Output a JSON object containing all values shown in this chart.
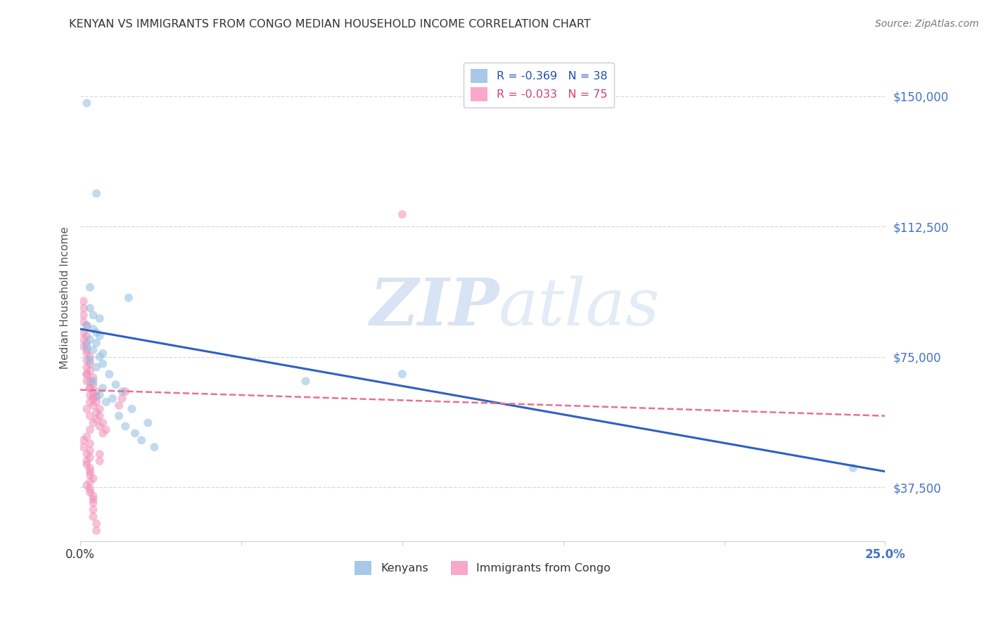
{
  "title": "KENYAN VS IMMIGRANTS FROM CONGO MEDIAN HOUSEHOLD INCOME CORRELATION CHART",
  "source": "Source: ZipAtlas.com",
  "ylabel": "Median Household Income",
  "xlim": [
    0.0,
    0.25
  ],
  "ylim": [
    22000,
    162000
  ],
  "yticks": [
    37500,
    75000,
    112500,
    150000
  ],
  "ytick_labels": [
    "$37,500",
    "$75,000",
    "$112,500",
    "$150,000"
  ],
  "xticks": [
    0.0,
    0.05,
    0.1,
    0.15,
    0.2,
    0.25
  ],
  "xtick_labels_show": [
    "0.0%",
    "",
    "",
    "",
    "",
    "25.0%"
  ],
  "legend_top": [
    {
      "label": "R = -0.369   N = 38",
      "color": "#a8c8e8"
    },
    {
      "label": "R = -0.033   N = 75",
      "color": "#f9a8c9"
    }
  ],
  "legend_bottom": [
    {
      "label": "Kenyans",
      "color": "#a8c8e8"
    },
    {
      "label": "Immigrants from Congo",
      "color": "#f9a8c9"
    }
  ],
  "watermark_zip": "ZIP",
  "watermark_atlas": "atlas",
  "blue_line_x": [
    0.0,
    0.25
  ],
  "blue_line_y": [
    83000,
    42000
  ],
  "pink_line_x": [
    0.0,
    0.25
  ],
  "pink_line_y": [
    65500,
    58000
  ],
  "kenyan_x": [
    0.002,
    0.005,
    0.003,
    0.015,
    0.003,
    0.004,
    0.006,
    0.002,
    0.004,
    0.005,
    0.006,
    0.003,
    0.005,
    0.002,
    0.004,
    0.007,
    0.006,
    0.003,
    0.007,
    0.005,
    0.009,
    0.004,
    0.011,
    0.007,
    0.013,
    0.006,
    0.01,
    0.008,
    0.016,
    0.012,
    0.021,
    0.014,
    0.017,
    0.019,
    0.023,
    0.07,
    0.1,
    0.24
  ],
  "kenyan_y": [
    148000,
    122000,
    95000,
    92000,
    89000,
    87000,
    86000,
    84000,
    83000,
    82000,
    81000,
    80000,
    79000,
    78000,
    77000,
    76000,
    75000,
    74000,
    73000,
    72000,
    70000,
    68000,
    67000,
    66000,
    65000,
    64000,
    63000,
    62000,
    60000,
    58000,
    56000,
    55000,
    53000,
    51000,
    49000,
    68000,
    70000,
    43000
  ],
  "congo_x": [
    0.001,
    0.001,
    0.001,
    0.001,
    0.002,
    0.001,
    0.002,
    0.001,
    0.002,
    0.001,
    0.002,
    0.002,
    0.003,
    0.002,
    0.003,
    0.002,
    0.003,
    0.002,
    0.004,
    0.003,
    0.004,
    0.003,
    0.005,
    0.004,
    0.005,
    0.004,
    0.005,
    0.004,
    0.006,
    0.005,
    0.006,
    0.005,
    0.007,
    0.006,
    0.008,
    0.007,
    0.001,
    0.001,
    0.002,
    0.002,
    0.003,
    0.003,
    0.003,
    0.003,
    0.004,
    0.004,
    0.004,
    0.004,
    0.005,
    0.005,
    0.006,
    0.006,
    0.002,
    0.002,
    0.003,
    0.003,
    0.003,
    0.002,
    0.003,
    0.004,
    0.003,
    0.002,
    0.003,
    0.003,
    0.003,
    0.002,
    0.003,
    0.004,
    0.002,
    0.003,
    0.004,
    0.1,
    0.014,
    0.013,
    0.012
  ],
  "congo_y": [
    91000,
    89000,
    87000,
    85000,
    84000,
    82000,
    81000,
    80000,
    79000,
    78000,
    77000,
    76000,
    75000,
    74000,
    73000,
    72000,
    71000,
    70000,
    69000,
    68000,
    67000,
    66000,
    65000,
    64000,
    63500,
    63000,
    62000,
    61000,
    60000,
    59000,
    58000,
    57000,
    56000,
    55000,
    54000,
    53000,
    51000,
    49000,
    47000,
    45000,
    43000,
    41000,
    39000,
    37000,
    35000,
    33000,
    31000,
    29000,
    27000,
    25000,
    47000,
    45000,
    70000,
    68000,
    66000,
    64000,
    62000,
    60000,
    58000,
    56000,
    54000,
    52000,
    50000,
    48000,
    46000,
    44000,
    42000,
    40000,
    38000,
    36000,
    34000,
    116000,
    65000,
    63000,
    61000
  ],
  "scatter_alpha": 0.55,
  "dot_size": 75,
  "bg_color": "#ffffff",
  "grid_color": "#d0d0d0",
  "blue_line_color": "#3060c0",
  "pink_line_color": "#e87090",
  "blue_scatter_color": "#90bce0",
  "pink_scatter_color": "#f090b8",
  "ytick_color": "#4472c4",
  "xtick_left_color": "#333333",
  "xtick_right_color": "#4472c4",
  "title_color": "#333333",
  "source_color": "#777777",
  "ylabel_color": "#555555"
}
